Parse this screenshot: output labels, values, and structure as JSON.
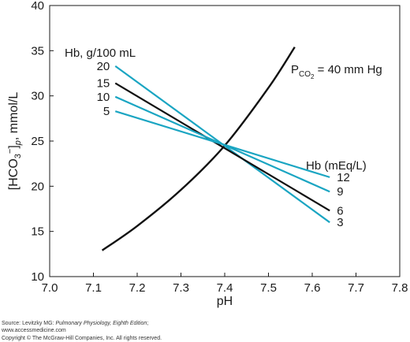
{
  "chart_data": {
    "type": "line",
    "xlabel": "pH",
    "ylabel": "[HCO3−]p, mmol/L",
    "ylabel_parts": {
      "main": "[HCO",
      "sub": "3",
      "sup": "−",
      "close": "]",
      "sub2": "p",
      "units": ", mmol/L"
    },
    "xlim": [
      7.0,
      7.8
    ],
    "ylim": [
      10,
      40
    ],
    "x_ticks": [
      "7.0",
      "7.1",
      "7.2",
      "7.3",
      "7.4",
      "7.5",
      "7.6",
      "7.7",
      "7.8"
    ],
    "y_ticks": [
      "10",
      "15",
      "20",
      "25",
      "30",
      "35",
      "40"
    ],
    "isobar": {
      "label_main": "P",
      "label_sub": "CO",
      "label_subsub": "2",
      "label_rest": " = 40 mm Hg",
      "color": "#111111",
      "x": [
        7.12,
        7.2,
        7.3,
        7.4,
        7.5,
        7.56
      ],
      "y": [
        12.9,
        15.6,
        19.6,
        24.5,
        30.9,
        35.4
      ]
    },
    "hb_g_header": "Hb, g/100 mL",
    "hb_meq_header": "Hb (mEq/L)",
    "series": [
      {
        "name": "20",
        "meq": "3",
        "color": "#1aa5c2",
        "x": [
          7.15,
          7.64
        ],
        "y": [
          33.3,
          16.0
        ]
      },
      {
        "name": "15",
        "meq": "6",
        "color": "#111111",
        "x": [
          7.15,
          7.64
        ],
        "y": [
          31.4,
          17.3
        ]
      },
      {
        "name": "10",
        "meq": "9",
        "color": "#1aa5c2",
        "x": [
          7.15,
          7.64
        ],
        "y": [
          29.9,
          19.4
        ]
      },
      {
        "name": "5",
        "meq": "12",
        "color": "#1aa5c2",
        "x": [
          7.15,
          7.64
        ],
        "y": [
          28.3,
          21.0
        ]
      }
    ]
  },
  "footer": {
    "source_prefix": "Source: Levitzky MG: ",
    "source_title": "Pulmonary Physiology, Eighth Edition",
    "source_suffix": ";",
    "website": "www.accessmedicine.com",
    "copyright": "Copyright © The McGraw-Hill Companies, Inc. All rights reserved."
  }
}
